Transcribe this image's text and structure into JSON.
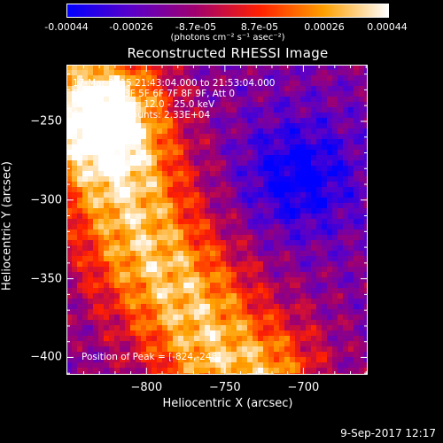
{
  "chart_data": {
    "type": "heatmap",
    "title": "Reconstructed RHESSI Image",
    "xlabel": "Heliocentric X (arcsec)",
    "ylabel": "Heliocentric Y (arcsec)",
    "xlim": [
      -851,
      -659
    ],
    "ylim": [
      -411,
      -214
    ],
    "x_ticks": [
      -800,
      -750,
      -700
    ],
    "y_ticks": [
      -250,
      -300,
      -350,
      -400
    ],
    "colorbar": {
      "min": -0.00044,
      "max": 0.00044,
      "tick_values": [
        -0.00044,
        -0.00026,
        -8.7e-05,
        8.7e-05,
        0.00026,
        0.00044
      ],
      "tick_labels": [
        "-0.00044",
        "-0.00026",
        "-8.7e-05",
        "8.7e-05",
        "0.00026",
        "0.00044"
      ],
      "units": "(photons cm⁻² s⁻¹ asec⁻²)",
      "colors": [
        "#0000ff",
        "#5a00c8",
        "#a0006e",
        "#ff2000",
        "#ffa000",
        "#ffffff"
      ]
    },
    "annotations": [
      "17-Mar-2015 21:43:04.000 to 21:53:04.000",
      "Detectors: 3F 5F 6F 7F 8F 9F, Att 0",
      "Energy Range: 12.0 - 25.0 keV",
      "Clean    Total counts: 2.33E+04"
    ],
    "peak_label": "Position of Peak = [-824,-248]",
    "peak_position": [
      -824,
      -248
    ],
    "emission_ridge": [
      [
        -835,
        -245
      ],
      [
        -800,
        -330
      ],
      [
        -755,
        -395
      ],
      [
        -735,
        -411
      ]
    ],
    "negative_minimum": [
      -703,
      -285
    ],
    "grid": false
  },
  "footer": {
    "date": "9-Sep-2017 12:17"
  }
}
